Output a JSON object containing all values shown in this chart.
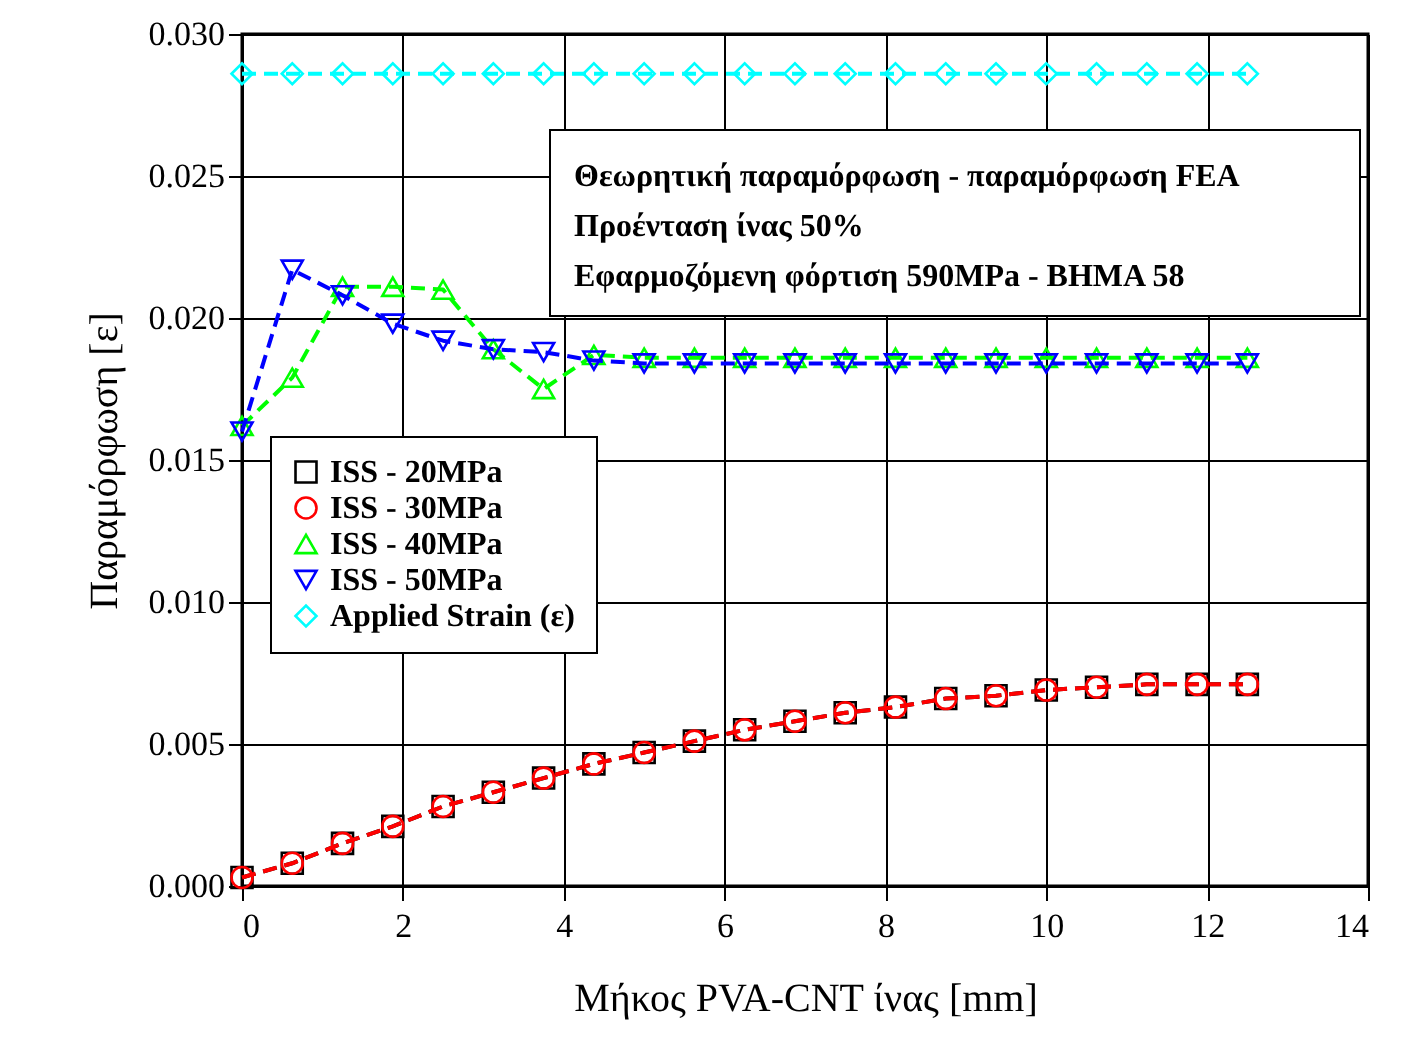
{
  "chart_data": {
    "type": "line",
    "xlabel": "Μήκος PVA-CNT ίνας [mm]",
    "ylabel": "Παραμόρφωση [ε]",
    "annotations": [
      "Θεωρητική παραμόρφωση - παραμόρφωση FEA",
      "Προένταση ίνας 50%",
      "Εφαρμοζόμενη φόρτιση 590MPa - BHMA 58"
    ],
    "x": [
      0,
      0.625,
      1.25,
      1.875,
      2.5,
      3.125,
      3.75,
      4.375,
      5,
      5.625,
      6.25,
      6.875,
      7.5,
      8.125,
      8.75,
      9.375,
      10,
      10.625,
      11.25,
      11.875,
      12.5
    ],
    "series": [
      {
        "name": "ISS - 20MPa",
        "color": "#000000",
        "marker": "square",
        "values": [
          0.0003,
          0.0008,
          0.0015,
          0.0021,
          0.0028,
          0.0033,
          0.0038,
          0.0043,
          0.0047,
          0.0051,
          0.0055,
          0.0058,
          0.0061,
          0.0063,
          0.0066,
          0.0067,
          0.0069,
          0.007,
          0.0071,
          0.0071,
          0.0071
        ]
      },
      {
        "name": "ISS - 30MPa",
        "color": "#ff0000",
        "marker": "circle",
        "values": [
          0.0003,
          0.0008,
          0.0015,
          0.0021,
          0.0028,
          0.0033,
          0.0038,
          0.0043,
          0.0047,
          0.0051,
          0.0055,
          0.0058,
          0.0061,
          0.0063,
          0.0066,
          0.0067,
          0.0069,
          0.007,
          0.0071,
          0.0071,
          0.0071
        ]
      },
      {
        "name": "ISS - 40MPa",
        "color": "#00ff00",
        "marker": "triangle",
        "values": [
          0.0162,
          0.0179,
          0.0211,
          0.0211,
          0.021,
          0.0189,
          0.0175,
          0.0187,
          0.0186,
          0.0186,
          0.0186,
          0.0186,
          0.0186,
          0.0186,
          0.0186,
          0.0186,
          0.0186,
          0.0186,
          0.0186,
          0.0186,
          0.0186
        ]
      },
      {
        "name": "ISS - 50MPa",
        "color": "#0000ff",
        "marker": "triangle-down",
        "values": [
          0.016,
          0.0217,
          0.0208,
          0.0198,
          0.0192,
          0.0189,
          0.0188,
          0.0185,
          0.0184,
          0.0184,
          0.0184,
          0.0184,
          0.0184,
          0.0184,
          0.0184,
          0.0184,
          0.0184,
          0.0184,
          0.0184,
          0.0184,
          0.0184
        ]
      },
      {
        "name": "Applied Strain (ε)",
        "color": "#00ffff",
        "marker": "diamond",
        "values": [
          0.0286,
          0.0286,
          0.0286,
          0.0286,
          0.0286,
          0.0286,
          0.0286,
          0.0286,
          0.0286,
          0.0286,
          0.0286,
          0.0286,
          0.0286,
          0.0286,
          0.0286,
          0.0286,
          0.0286,
          0.0286,
          0.0286,
          0.0286,
          0.0286
        ]
      }
    ],
    "xlim": [
      0,
      14
    ],
    "xticks": [
      0,
      2,
      4,
      6,
      8,
      10,
      12,
      14
    ],
    "ylim": [
      0,
      0.03
    ],
    "yticks": [
      {
        "value": 0,
        "label": "0.000"
      },
      {
        "value": 0.005,
        "label": "0.005"
      },
      {
        "value": 0.01,
        "label": "0.010"
      },
      {
        "value": 0.015,
        "label": "0.015"
      },
      {
        "value": 0.02,
        "label": "0.020"
      },
      {
        "value": 0.025,
        "label": "0.025"
      },
      {
        "value": 0.03,
        "label": "0.030"
      }
    ],
    "grid": true,
    "legend": "left",
    "line_style": "dashed"
  }
}
